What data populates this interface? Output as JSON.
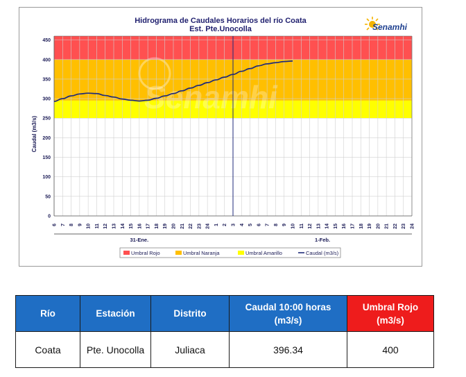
{
  "chart_data": {
    "type": "line",
    "title": "Hidrograma de Caudales Horarios del río Coata",
    "subtitle": "Est. Pte.Unocolla",
    "ylabel": "Caudal  (m3/s)",
    "ylim": [
      0,
      460
    ],
    "yticks": [
      0,
      50,
      100,
      150,
      200,
      250,
      300,
      350,
      400,
      450
    ],
    "grid": true,
    "legend_position": "bottom",
    "xticks": [
      "6",
      "7",
      "8",
      "9",
      "10",
      "11",
      "12",
      "13",
      "14",
      "15",
      "16",
      "17",
      "18",
      "19",
      "20",
      "21",
      "22",
      "23",
      "24",
      "1",
      "2",
      "3",
      "4",
      "5",
      "6",
      "7",
      "8",
      "9",
      "10",
      "11",
      "12",
      "13",
      "14",
      "15",
      "16",
      "17",
      "18",
      "19",
      "20",
      "21",
      "22",
      "23",
      "24"
    ],
    "day_labels": [
      {
        "text": "31-Ene.",
        "start_index": 0,
        "end_index": 20
      },
      {
        "text": "1-Feb.",
        "start_index": 21,
        "end_index": 42
      }
    ],
    "thresholds": [
      {
        "name": "Umbral Rojo",
        "from": 400,
        "to": 460,
        "color": "#ff5050"
      },
      {
        "name": "Umbral Naranja",
        "from": 295,
        "to": 400,
        "color": "#ffbf00"
      },
      {
        "name": "Umbral Amarillo",
        "from": 250,
        "to": 295,
        "color": "#ffff00"
      }
    ],
    "divider_index": 21,
    "series": [
      {
        "name": "Caudal (m3/s)",
        "color": "#1f2a7a",
        "x": [
          0,
          1,
          2,
          3,
          4,
          5,
          6,
          7,
          8,
          9,
          10,
          11,
          12,
          13,
          14,
          15,
          16,
          17,
          18,
          19,
          20,
          21,
          22,
          23,
          24,
          25,
          26,
          27,
          28
        ],
        "values": [
          293,
          300,
          307,
          312,
          314,
          313,
          308,
          304,
          299,
          296,
          294,
          296,
          301,
          307,
          313,
          320,
          327,
          334,
          341,
          348,
          355,
          362,
          370,
          377,
          384,
          389,
          392,
          395,
          396.34
        ]
      }
    ],
    "legend": [
      "Umbral Rojo",
      "Umbral Naranja",
      "Umbral Amarillo",
      "Caudal (m3/s)"
    ]
  },
  "logo": {
    "text": "Senamhi",
    "watermark": "Senamhi"
  },
  "table": {
    "headers": [
      "Río",
      "Estación",
      "Distrito",
      "Caudal 10:00 horas (m3/s)",
      "Umbral Rojo (m3/s)"
    ],
    "row": [
      "Coata",
      "Pte. Unocolla",
      "Juliaca",
      "396.34",
      "400"
    ]
  }
}
